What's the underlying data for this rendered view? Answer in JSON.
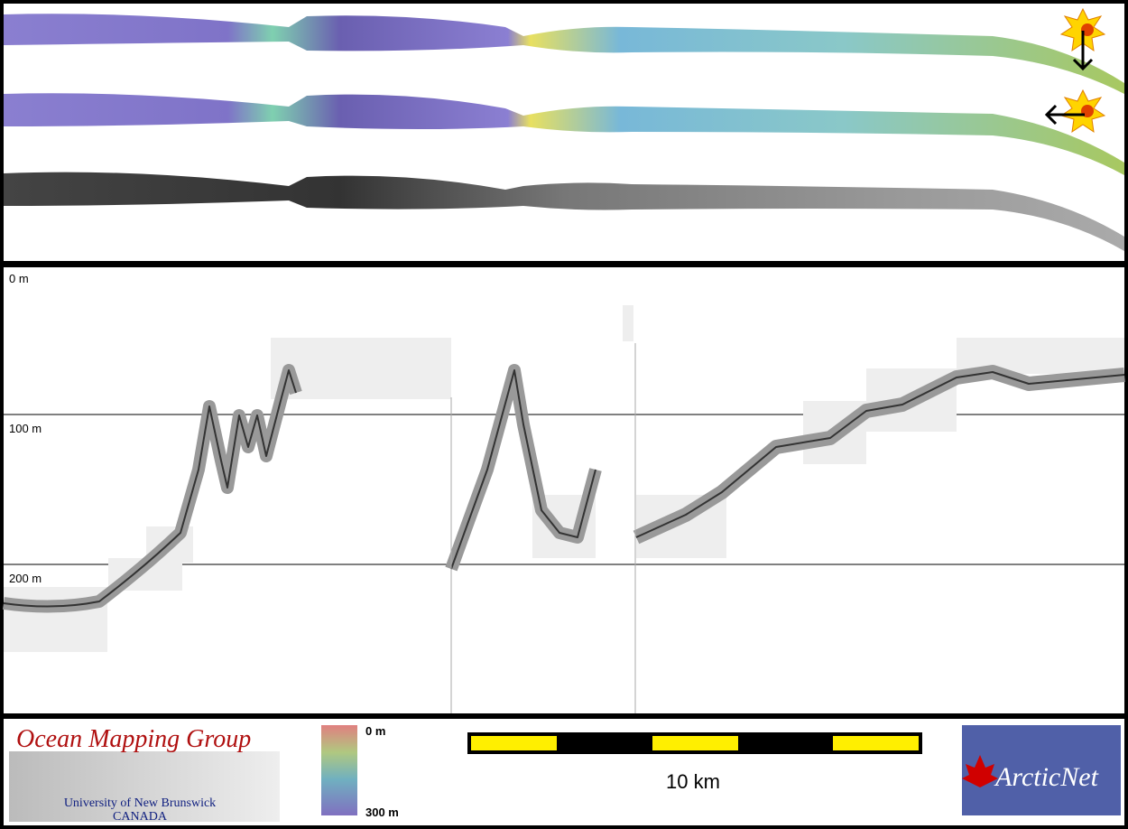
{
  "profile": {
    "depth_labels": [
      "0 m",
      "100 m",
      "200 m"
    ]
  },
  "footer": {
    "logo_title": "Ocean Mapping Group",
    "logo_university": "University of New Brunswick",
    "logo_country": "CANADA",
    "colorbar_top": "0 m",
    "colorbar_bottom": "300 m",
    "scale_label": "10 km",
    "partner": "ArcticNet"
  }
}
